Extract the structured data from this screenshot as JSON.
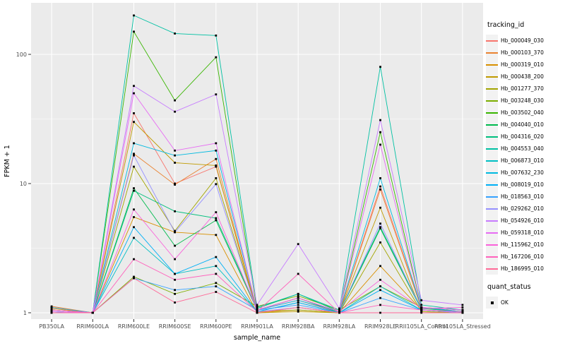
{
  "chart_data": {
    "type": "line",
    "title": "",
    "xlabel": "sample_name",
    "ylabel": "FPKM + 1",
    "y_scale": "log10",
    "y_ticks": [
      1,
      10,
      100
    ],
    "y_minor_ticks": [
      3.162,
      31.62
    ],
    "ylim": [
      0.9,
      290
    ],
    "grid": true,
    "legend_position": "right",
    "point_marker": {
      "shape": "square",
      "color": "#000000"
    },
    "categories": [
      "PB350LA",
      "RRIM600LA",
      "RRIM600LE",
      "RRIM600SE",
      "RRIM600PE",
      "RRIM901LA",
      "RRIM928BA",
      "RRIM928LA",
      "RRIM928LE",
      "RRII105LA_Control",
      "RRII105LA_Stressed"
    ],
    "series": [
      {
        "name": "Hb_000049_030",
        "color": "#F8766D",
        "values": [
          1.05,
          1.0,
          35,
          10,
          13.5,
          1.05,
          1.25,
          1.0,
          9.5,
          1.1,
          1.05
        ]
      },
      {
        "name": "Hb_000103_370",
        "color": "#EA8331",
        "values": [
          1.12,
          1.0,
          17,
          9.8,
          15.5,
          1.0,
          1.1,
          1.0,
          9.0,
          1.08,
          1.02
        ]
      },
      {
        "name": "Hb_000319_010",
        "color": "#D89000",
        "values": [
          1.08,
          1.0,
          5.5,
          4.2,
          4.0,
          1.0,
          1.05,
          1.0,
          2.3,
          1.05,
          1.0
        ]
      },
      {
        "name": "Hb_000438_200",
        "color": "#C09B00",
        "values": [
          1.0,
          1.0,
          30,
          14.5,
          13.8,
          1.0,
          1.02,
          1.0,
          6.5,
          1.02,
          1.0
        ]
      },
      {
        "name": "Hb_001277_370",
        "color": "#A3A500",
        "values": [
          1.0,
          1.0,
          13.5,
          4.3,
          11.0,
          1.02,
          1.05,
          1.0,
          3.5,
          1.02,
          1.0
        ]
      },
      {
        "name": "Hb_003248_030",
        "color": "#7CAE00",
        "values": [
          1.1,
          1.0,
          1.9,
          1.4,
          1.7,
          1.12,
          1.35,
          1.05,
          1.6,
          1.1,
          1.05
        ]
      },
      {
        "name": "Hb_003502_040",
        "color": "#39B600",
        "values": [
          1.05,
          1.0,
          150,
          44,
          95,
          1.05,
          1.3,
          1.02,
          25,
          1.1,
          1.02
        ]
      },
      {
        "name": "Hb_004040_010",
        "color": "#00BB4E",
        "values": [
          1.0,
          1.0,
          9.2,
          3.3,
          5.2,
          1.05,
          1.3,
          1.0,
          4.5,
          1.05,
          1.0
        ]
      },
      {
        "name": "Hb_004316_020",
        "color": "#00BF7D",
        "values": [
          1.02,
          1.0,
          8.8,
          6.1,
          5.4,
          1.08,
          1.4,
          1.02,
          4.6,
          1.08,
          1.02
        ]
      },
      {
        "name": "Hb_004553_040",
        "color": "#00C1A3",
        "values": [
          1.05,
          1.0,
          200,
          145,
          140,
          1.1,
          1.4,
          1.05,
          80,
          1.15,
          1.05
        ]
      },
      {
        "name": "Hb_006873_010",
        "color": "#00BFC4",
        "values": [
          1.02,
          1.0,
          3.8,
          2.0,
          2.3,
          1.02,
          1.2,
          1.0,
          1.6,
          1.05,
          1.0
        ]
      },
      {
        "name": "Hb_007632_230",
        "color": "#00BAE0",
        "values": [
          1.05,
          1.0,
          20.5,
          16.5,
          18.0,
          1.05,
          1.25,
          1.02,
          11.0,
          1.1,
          1.02
        ]
      },
      {
        "name": "Hb_008019_010",
        "color": "#00B0F6",
        "values": [
          1.02,
          1.0,
          4.6,
          2.0,
          2.7,
          1.02,
          1.2,
          1.0,
          1.5,
          1.05,
          1.0
        ]
      },
      {
        "name": "Hb_018563_010",
        "color": "#35A2FF",
        "values": [
          1.1,
          1.0,
          1.85,
          1.5,
          1.6,
          1.05,
          1.15,
          1.0,
          1.3,
          1.05,
          1.02
        ]
      },
      {
        "name": "Hb_029262_010",
        "color": "#9590FF",
        "values": [
          1.02,
          1.0,
          16.5,
          4.2,
          9.9,
          1.02,
          1.1,
          1.0,
          4.9,
          1.05,
          1.0
        ]
      },
      {
        "name": "Hb_054926_010",
        "color": "#C77CFF",
        "values": [
          1.05,
          1.0,
          57,
          36,
          49,
          1.15,
          3.4,
          1.08,
          31,
          1.25,
          1.15
        ]
      },
      {
        "name": "Hb_059318_010",
        "color": "#E76BF3",
        "values": [
          1.02,
          1.0,
          50,
          18,
          20.5,
          1.05,
          1.3,
          1.02,
          20,
          1.1,
          1.05
        ]
      },
      {
        "name": "Hb_115962_010",
        "color": "#FA62DB",
        "values": [
          1.05,
          1.0,
          6.3,
          2.6,
          6.0,
          1.05,
          1.3,
          1.02,
          1.8,
          1.08,
          1.1
        ]
      },
      {
        "name": "Hb_167206_010",
        "color": "#FF62BC",
        "values": [
          1.05,
          1.0,
          2.6,
          1.8,
          2.0,
          1.02,
          2.0,
          1.0,
          1.15,
          1.05,
          1.02
        ]
      },
      {
        "name": "Hb_186995_010",
        "color": "#FF6A98",
        "values": [
          1.0,
          1.0,
          1.85,
          1.2,
          1.45,
          1.0,
          1.1,
          1.0,
          1.0,
          1.0,
          1.0
        ]
      }
    ]
  },
  "legend": {
    "tracking_title": "tracking_id",
    "quant_title": "quant_status",
    "quant_items": [
      {
        "label": "OK"
      }
    ]
  },
  "colors": {
    "panel_bg": "#EBEBEB",
    "grid": "#FFFFFF",
    "axis_text": "#4D4D4D",
    "title_text": "#000000",
    "key_bg": "#F2F2F2",
    "point": "#000000"
  }
}
